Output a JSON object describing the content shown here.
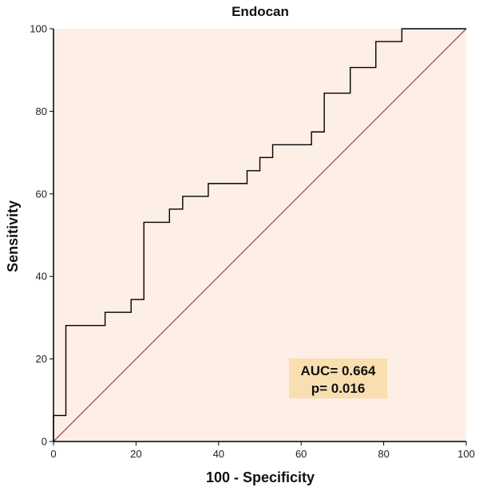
{
  "chart_data": {
    "type": "line",
    "title": "Endocan",
    "xlabel": "100 - Specificity",
    "ylabel": "Sensitivity",
    "xlim": [
      0,
      100
    ],
    "ylim": [
      0,
      100
    ],
    "x_ticks": [
      0,
      20,
      40,
      60,
      80,
      100
    ],
    "y_ticks": [
      0,
      20,
      40,
      60,
      80,
      100
    ],
    "grid": false,
    "background_color": "#fdeee6",
    "series": [
      {
        "style": "step",
        "color": "#000000",
        "x": [
          0,
          0,
          3,
          3,
          12.5,
          12.5,
          18.8,
          18.8,
          21.9,
          21.9,
          28.1,
          28.1,
          31.3,
          31.3,
          37.5,
          37.5,
          46.9,
          46.9,
          50,
          50,
          53.1,
          53.1,
          62.5,
          62.5,
          65.6,
          65.6,
          71.9,
          71.9,
          78.1,
          78.1,
          84.4,
          84.4,
          100
        ],
        "y": [
          0,
          6.3,
          6.3,
          28.1,
          28.1,
          31.3,
          31.3,
          34.4,
          34.4,
          53.1,
          53.1,
          56.3,
          56.3,
          59.4,
          59.4,
          62.5,
          62.5,
          65.6,
          65.6,
          68.8,
          68.8,
          71.9,
          71.9,
          75,
          75,
          84.4,
          84.4,
          90.6,
          90.6,
          96.9,
          96.9,
          100,
          100
        ]
      },
      {
        "style": "diagonal",
        "color": "#a0505a",
        "x": [
          0,
          100
        ],
        "y": [
          0,
          100
        ]
      }
    ],
    "annotation": {
      "lines": [
        "AUC= 0.664",
        "p= 0.016"
      ],
      "background": "#f9dfb0",
      "position": "bottom-right"
    }
  }
}
